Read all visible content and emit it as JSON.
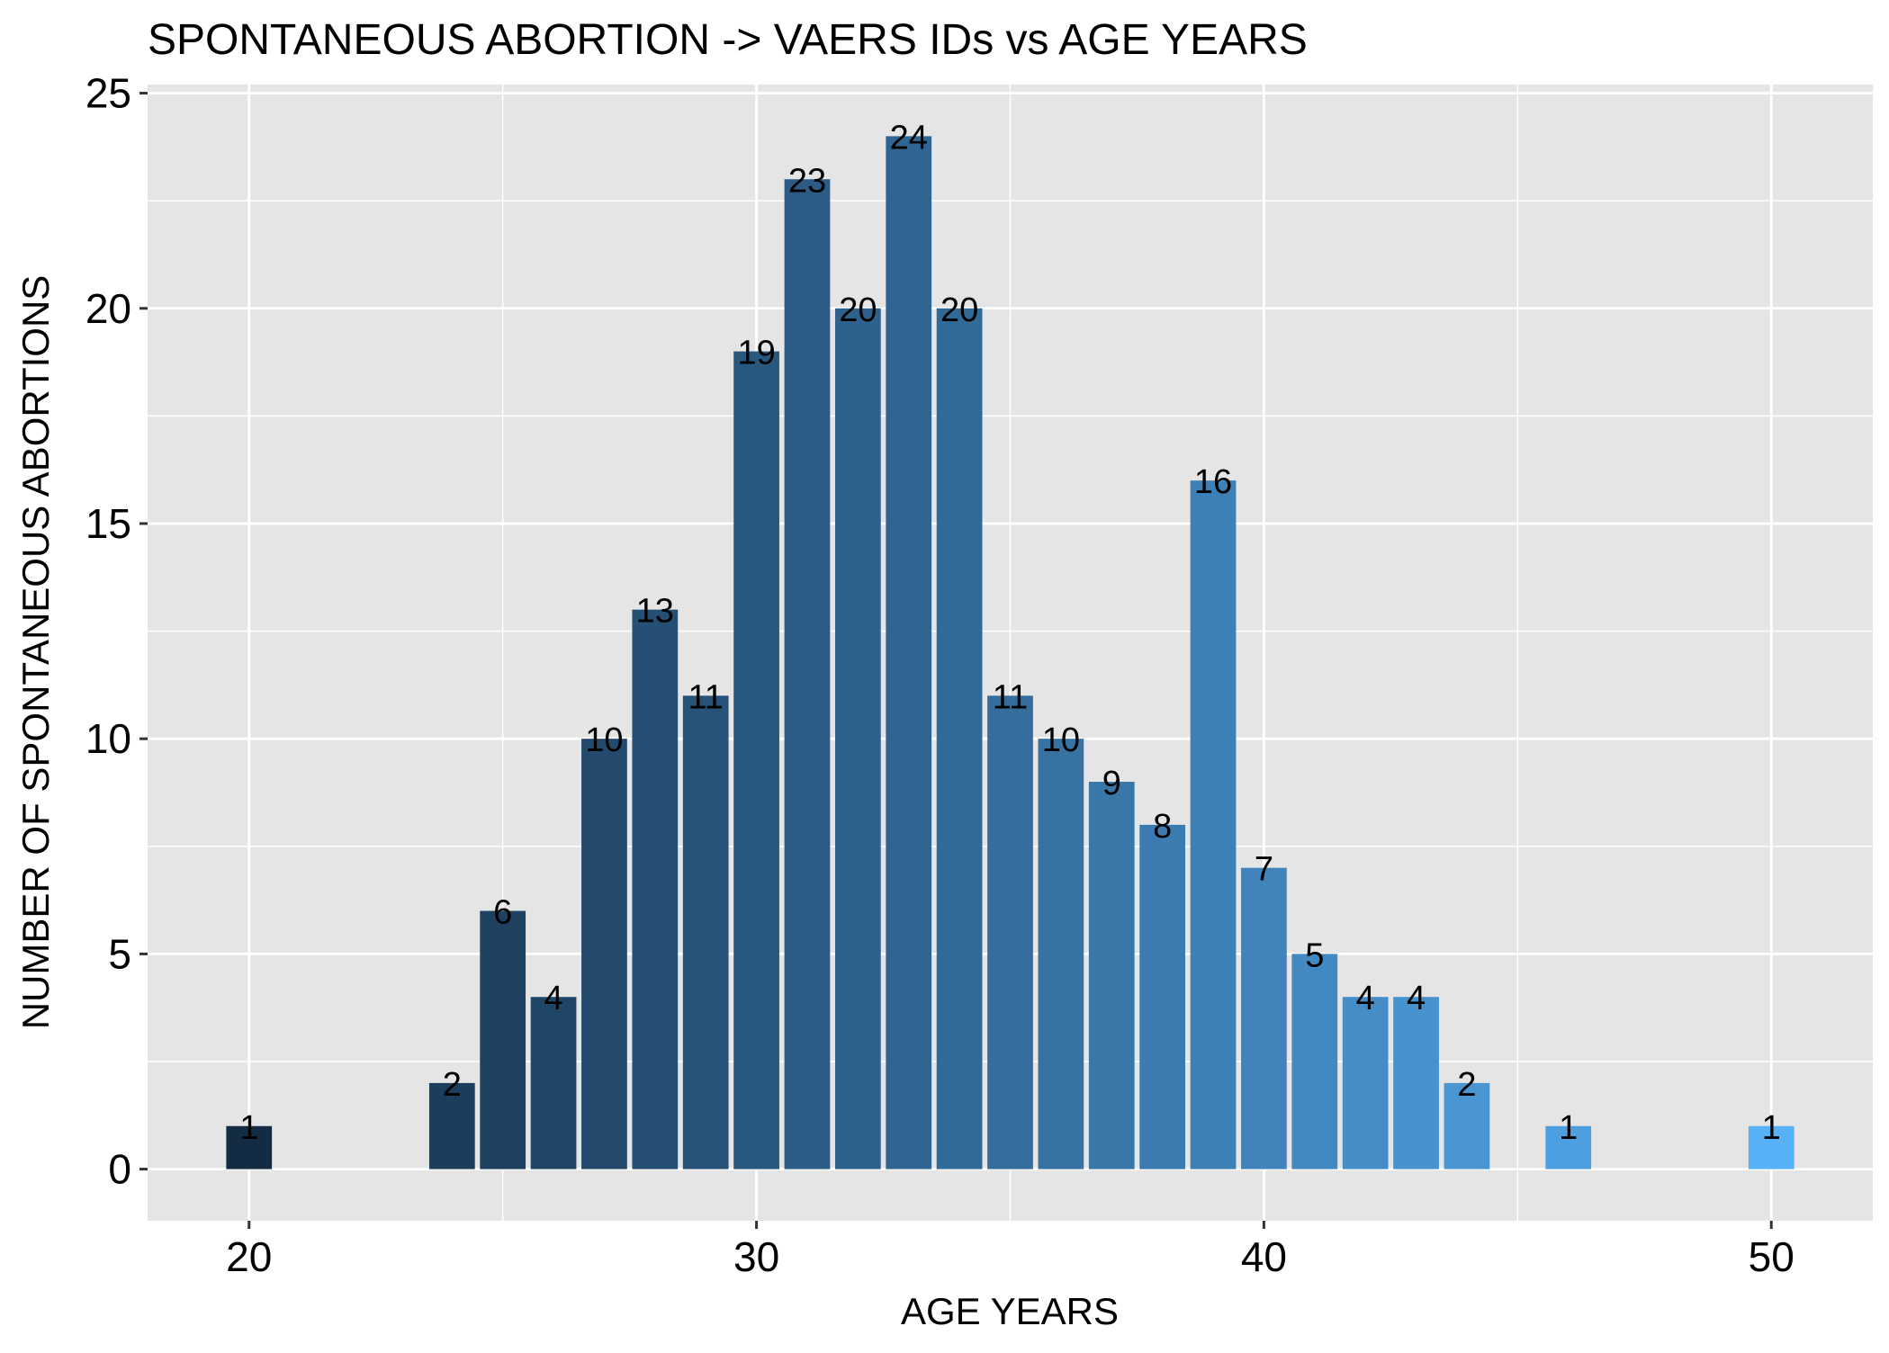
{
  "chart_data": {
    "type": "bar",
    "title": "SPONTANEOUS ABORTION -> VAERS IDs vs AGE YEARS",
    "xlabel": "AGE YEARS",
    "ylabel": "NUMBER OF SPONTANEOUS ABORTIONS",
    "x_ticks": [
      20,
      30,
      40,
      50
    ],
    "y_ticks": [
      0,
      5,
      10,
      15,
      20,
      25
    ],
    "xlim": [
      18,
      52
    ],
    "ylim": [
      -1.2,
      25.2
    ],
    "grid": true,
    "legend": "none",
    "color_low": "#132B43",
    "color_high": "#56B1F7",
    "panel_background": "#E5E5E5",
    "grid_color": "#FFFFFF",
    "x": [
      20,
      24,
      25,
      26,
      27,
      28,
      29,
      30,
      31,
      32,
      33,
      34,
      35,
      36,
      37,
      38,
      39,
      40,
      41,
      42,
      43,
      44,
      46,
      50
    ],
    "values": [
      1,
      2,
      6,
      4,
      10,
      13,
      11,
      19,
      23,
      20,
      24,
      20,
      11,
      10,
      9,
      8,
      16,
      7,
      5,
      4,
      4,
      2,
      1,
      1
    ]
  }
}
